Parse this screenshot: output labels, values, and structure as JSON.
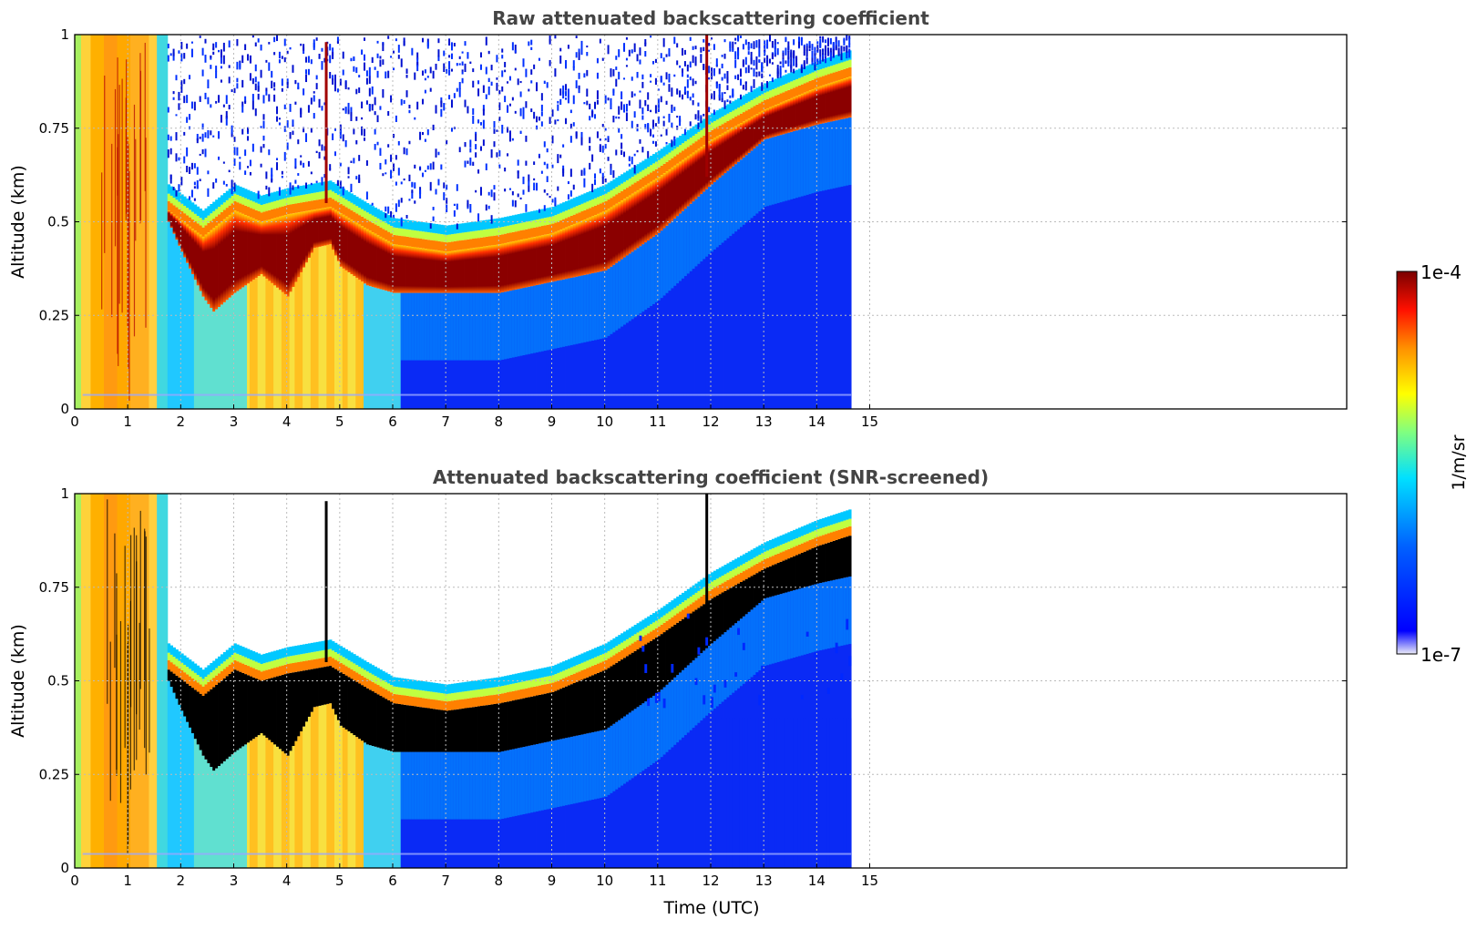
{
  "chart_data": [
    {
      "type": "heatmap",
      "title": "Raw attenuated backscattering coefficient",
      "xlabel": "",
      "ylabel": "Altitude (km)",
      "xlim": [
        0,
        24
      ],
      "ylim": [
        0,
        1
      ],
      "x_ticks": [
        "0",
        "1",
        "2",
        "3",
        "4",
        "5",
        "6",
        "7",
        "8",
        "9",
        "10",
        "11",
        "12",
        "13",
        "14",
        "15"
      ],
      "y_ticks": [
        "0",
        "0.25",
        "0.5",
        "0.75",
        "1"
      ],
      "data_extent_hours": 14.65,
      "grid": true,
      "cloud_base_km": [
        [
          1.75,
          0.5
        ],
        [
          2.0,
          0.42
        ],
        [
          2.4,
          0.3
        ],
        [
          2.6,
          0.26
        ],
        [
          3.0,
          0.31
        ],
        [
          3.5,
          0.36
        ],
        [
          4.0,
          0.3
        ],
        [
          4.5,
          0.43
        ],
        [
          4.8,
          0.44
        ],
        [
          5.0,
          0.38
        ],
        [
          5.5,
          0.33
        ],
        [
          6.0,
          0.31
        ],
        [
          7.0,
          0.31
        ],
        [
          8.0,
          0.31
        ],
        [
          9.0,
          0.34
        ],
        [
          10.0,
          0.37
        ],
        [
          11.0,
          0.47
        ],
        [
          12.0,
          0.6
        ],
        [
          13.0,
          0.72
        ],
        [
          14.0,
          0.76
        ],
        [
          14.65,
          0.78
        ]
      ],
      "cloud_top_km": [
        [
          1.75,
          0.53
        ],
        [
          2.4,
          0.46
        ],
        [
          3.0,
          0.53
        ],
        [
          3.5,
          0.5
        ],
        [
          4.0,
          0.52
        ],
        [
          4.8,
          0.54
        ],
        [
          5.5,
          0.48
        ],
        [
          6.0,
          0.44
        ],
        [
          7.0,
          0.42
        ],
        [
          8.0,
          0.44
        ],
        [
          9.0,
          0.47
        ],
        [
          10.0,
          0.53
        ],
        [
          11.0,
          0.62
        ],
        [
          12.0,
          0.72
        ],
        [
          13.0,
          0.8
        ],
        [
          14.0,
          0.86
        ],
        [
          14.65,
          0.89
        ]
      ]
    },
    {
      "type": "heatmap",
      "title": "Attenuated backscattering coefficient (SNR-screened)",
      "xlabel": "Time (UTC)",
      "ylabel": "Altitude (km)",
      "xlim": [
        0,
        24
      ],
      "ylim": [
        0,
        1
      ],
      "x_ticks": [
        "0",
        "1",
        "2",
        "3",
        "4",
        "5",
        "6",
        "7",
        "8",
        "9",
        "10",
        "11",
        "12",
        "13",
        "14",
        "15"
      ],
      "y_ticks": [
        "0",
        "0.25",
        "0.5",
        "0.75",
        "1"
      ],
      "data_extent_hours": 14.65,
      "grid": true,
      "cloud_base_km": [
        [
          1.75,
          0.5
        ],
        [
          2.0,
          0.42
        ],
        [
          2.4,
          0.3
        ],
        [
          2.6,
          0.26
        ],
        [
          3.0,
          0.31
        ],
        [
          3.5,
          0.36
        ],
        [
          4.0,
          0.3
        ],
        [
          4.5,
          0.43
        ],
        [
          4.8,
          0.44
        ],
        [
          5.0,
          0.38
        ],
        [
          5.5,
          0.33
        ],
        [
          6.0,
          0.31
        ],
        [
          7.0,
          0.31
        ],
        [
          8.0,
          0.31
        ],
        [
          9.0,
          0.34
        ],
        [
          10.0,
          0.37
        ],
        [
          11.0,
          0.47
        ],
        [
          12.0,
          0.6
        ],
        [
          13.0,
          0.72
        ],
        [
          14.0,
          0.76
        ],
        [
          14.65,
          0.78
        ]
      ],
      "cloud_top_km": [
        [
          1.75,
          0.53
        ],
        [
          2.4,
          0.46
        ],
        [
          3.0,
          0.53
        ],
        [
          3.5,
          0.5
        ],
        [
          4.0,
          0.52
        ],
        [
          4.8,
          0.54
        ],
        [
          5.5,
          0.48
        ],
        [
          6.0,
          0.44
        ],
        [
          7.0,
          0.42
        ],
        [
          8.0,
          0.44
        ],
        [
          9.0,
          0.47
        ],
        [
          10.0,
          0.53
        ],
        [
          11.0,
          0.62
        ],
        [
          12.0,
          0.72
        ],
        [
          13.0,
          0.8
        ],
        [
          14.0,
          0.86
        ],
        [
          14.65,
          0.89
        ]
      ]
    }
  ],
  "colorbar": {
    "label": "1/m/sr",
    "max_label": "1e-4",
    "min_label": "1e-7",
    "scale": "log",
    "colors": [
      "#ececf8",
      "#0033ff",
      "#00e0ff",
      "#ffff00",
      "#ff8c00",
      "#ff0000",
      "#8b0000"
    ]
  }
}
